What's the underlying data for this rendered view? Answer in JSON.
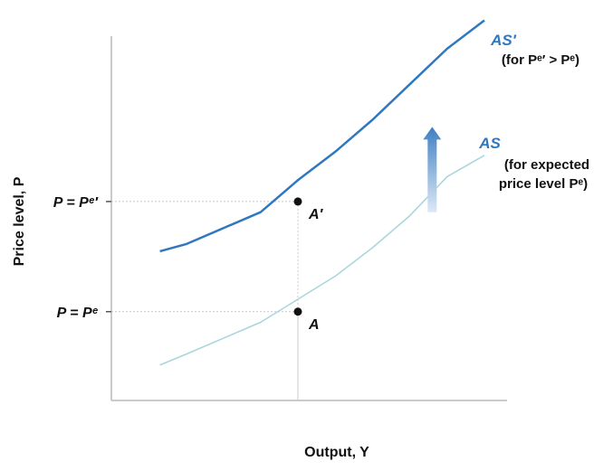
{
  "chart_data": {
    "type": "line",
    "title": "",
    "xlabel": "Output, Y",
    "ylabel": "Price level, P",
    "xlim": [
      0,
      10
    ],
    "ylim": [
      0,
      10
    ],
    "series": [
      {
        "name": "AS",
        "note": "(for expected price level Pᵉ)",
        "color": "#a9d6dc",
        "x": [
          1.3,
          2,
          3,
          4,
          5,
          6,
          7,
          8,
          9,
          10
        ],
        "y": [
          1.0,
          1.3,
          1.75,
          2.2,
          2.85,
          3.5,
          4.3,
          5.2,
          6.3,
          6.9
        ]
      },
      {
        "name": "AS′",
        "note": "(for Pᵉ′ > Pᵉ)",
        "color": "#2f78c0",
        "x": [
          1.3,
          2,
          3,
          4,
          5,
          6,
          7,
          8,
          9,
          10
        ],
        "y": [
          4.2,
          4.4,
          4.85,
          5.3,
          6.2,
          7.0,
          7.9,
          8.9,
          9.9,
          10.7
        ]
      }
    ],
    "points": [
      {
        "label": "A′",
        "x": 5,
        "y": 5.6
      },
      {
        "label": "A",
        "x": 5,
        "y": 2.5
      }
    ],
    "y_ticks": [
      {
        "label": "P = Pᵉ′",
        "value": 5.6
      },
      {
        "label": "P = Pᵉ",
        "value": 2.5
      }
    ],
    "arrow": {
      "x": 8.6,
      "y_from": 5.3,
      "y_to": 7.7,
      "direction": "up"
    },
    "grid": false
  }
}
